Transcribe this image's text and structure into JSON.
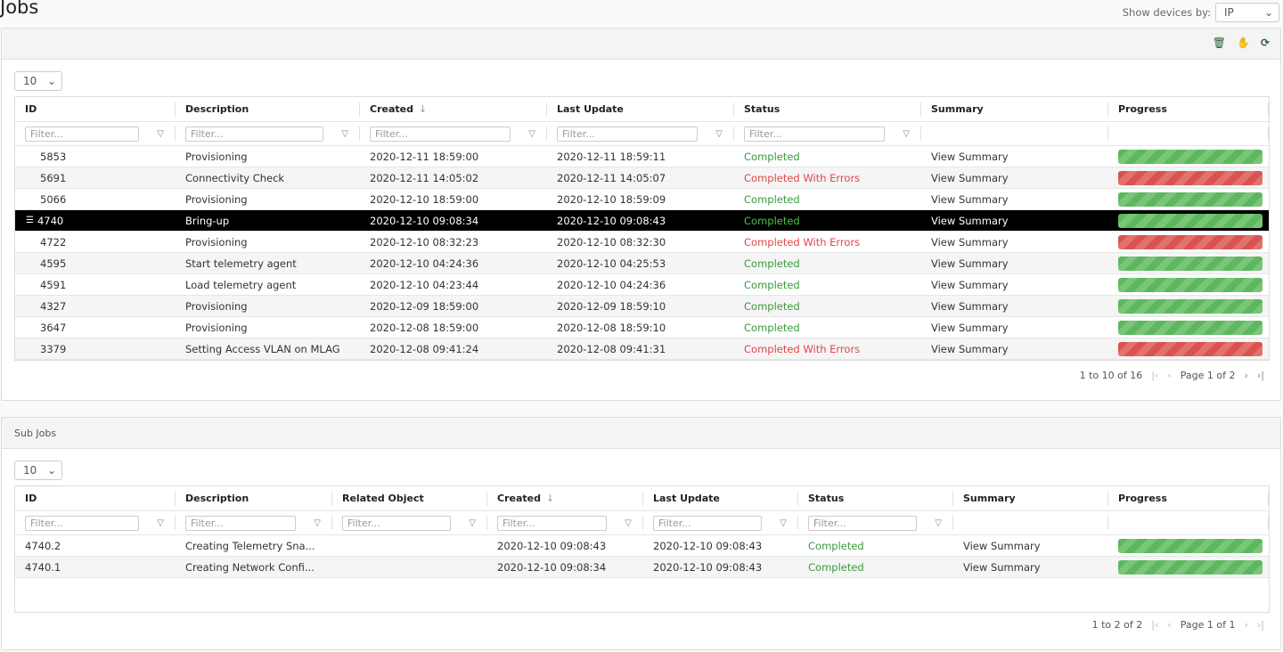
{
  "page": {
    "title": "Jobs",
    "show_devices_label": "Show devices by:",
    "show_devices_value": "IP"
  },
  "jobs": {
    "icons": [
      "trash-icon",
      "hand-icon",
      "refresh-icon"
    ],
    "page_size": "10",
    "filter_placeholder": "Filter...",
    "columns": [
      "ID",
      "Description",
      "Created",
      "Last Update",
      "Status",
      "Summary",
      "Progress"
    ],
    "sort_column": "Created",
    "sort_direction": "descending",
    "rows": [
      {
        "id": "5853",
        "description": "Provisioning",
        "created": "2020-12-11 18:59:00",
        "last_update": "2020-12-11 18:59:11",
        "status": "Completed",
        "summary": "View Summary",
        "progress": 100
      },
      {
        "id": "5691",
        "description": "Connectivity Check",
        "created": "2020-12-11 14:05:02",
        "last_update": "2020-12-11 14:05:07",
        "status": "Completed With Errors",
        "summary": "View Summary",
        "progress": 100
      },
      {
        "id": "5066",
        "description": "Provisioning",
        "created": "2020-12-10 18:59:00",
        "last_update": "2020-12-10 18:59:09",
        "status": "Completed",
        "summary": "View Summary",
        "progress": 100
      },
      {
        "id": "4740",
        "description": "Bring-up",
        "created": "2020-12-10 09:08:34",
        "last_update": "2020-12-10 09:08:43",
        "status": "Completed",
        "summary": "View Summary",
        "progress": 100,
        "selected": true
      },
      {
        "id": "4722",
        "description": "Provisioning",
        "created": "2020-12-10 08:32:23",
        "last_update": "2020-12-10 08:32:30",
        "status": "Completed With Errors",
        "summary": "View Summary",
        "progress": 100
      },
      {
        "id": "4595",
        "description": "Start telemetry agent",
        "created": "2020-12-10 04:24:36",
        "last_update": "2020-12-10 04:25:53",
        "status": "Completed",
        "summary": "View Summary",
        "progress": 100
      },
      {
        "id": "4591",
        "description": "Load telemetry agent",
        "created": "2020-12-10 04:23:44",
        "last_update": "2020-12-10 04:24:36",
        "status": "Completed",
        "summary": "View Summary",
        "progress": 100
      },
      {
        "id": "4327",
        "description": "Provisioning",
        "created": "2020-12-09 18:59:00",
        "last_update": "2020-12-09 18:59:10",
        "status": "Completed",
        "summary": "View Summary",
        "progress": 100
      },
      {
        "id": "3647",
        "description": "Provisioning",
        "created": "2020-12-08 18:59:00",
        "last_update": "2020-12-08 18:59:10",
        "status": "Completed",
        "summary": "View Summary",
        "progress": 100
      },
      {
        "id": "3379",
        "description": "Setting Access VLAN on MLAG",
        "created": "2020-12-08 09:41:24",
        "last_update": "2020-12-08 09:41:31",
        "status": "Completed With Errors",
        "summary": "View Summary",
        "progress": 100
      }
    ],
    "pager": {
      "range": "1 to 10 of 16",
      "page": "Page 1 of 2"
    }
  },
  "subjobs": {
    "title": "Sub Jobs",
    "page_size": "10",
    "filter_placeholder": "Filter...",
    "columns": [
      "ID",
      "Description",
      "Related Object",
      "Created",
      "Last Update",
      "Status",
      "Summary",
      "Progress"
    ],
    "rows": [
      {
        "id": "4740.2",
        "description": "Creating Telemetry Sna...",
        "related": "",
        "created": "2020-12-10 09:08:43",
        "last_update": "2020-12-10 09:08:43",
        "status": "Completed",
        "summary": "View Summary",
        "progress": 100
      },
      {
        "id": "4740.1",
        "description": "Creating Network Confi...",
        "related": "",
        "created": "2020-12-10 09:08:34",
        "last_update": "2020-12-10 09:08:43",
        "status": "Completed",
        "summary": "View Summary",
        "progress": 100
      }
    ],
    "pager": {
      "range": "1 to 2 of 2",
      "page": "Page 1 of 1"
    }
  },
  "colors": {
    "success": "#5cb85c",
    "error": "#d9534f",
    "selected_row": "#000000"
  }
}
